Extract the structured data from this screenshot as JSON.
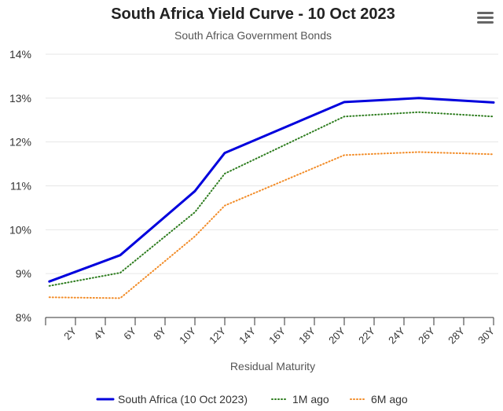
{
  "colors": {
    "grid": "#e6e6e6",
    "axis": "#333333",
    "menu": "#666666"
  },
  "menu_icon": "hamburger-menu-icon",
  "chart_data": {
    "type": "line",
    "title": "South Africa Yield Curve - 10 Oct 2023",
    "subtitle": "South Africa Government Bonds",
    "xlabel": "Residual Maturity",
    "ylabel": "",
    "xlim": [
      0,
      30
    ],
    "ylim": [
      8,
      14
    ],
    "yticks": [
      "8%",
      "9%",
      "10%",
      "11%",
      "12%",
      "13%",
      "14%"
    ],
    "ytick_values": [
      8,
      9,
      10,
      11,
      12,
      13,
      14
    ],
    "xticks": [
      "2Y",
      "4Y",
      "6Y",
      "8Y",
      "10Y",
      "12Y",
      "14Y",
      "16Y",
      "18Y",
      "20Y",
      "22Y",
      "24Y",
      "26Y",
      "28Y",
      "30Y"
    ],
    "xtick_values": [
      2,
      4,
      6,
      8,
      10,
      12,
      14,
      16,
      18,
      20,
      22,
      24,
      26,
      28,
      30
    ],
    "series": [
      {
        "name": "South Africa (10 Oct 2023)",
        "color": "#0000dd",
        "style": "solid",
        "x": [
          0.25,
          5,
          10,
          12,
          20,
          25,
          30
        ],
        "values": [
          8.82,
          9.42,
          10.88,
          11.75,
          12.91,
          13.0,
          12.9
        ]
      },
      {
        "name": "1M ago",
        "color": "#2e7d1f",
        "style": "dotted",
        "x": [
          0.25,
          5,
          10,
          12,
          20,
          25,
          30
        ],
        "values": [
          8.72,
          9.02,
          10.4,
          11.28,
          12.58,
          12.68,
          12.58
        ]
      },
      {
        "name": "6M ago",
        "color": "#f28c28",
        "style": "dotted",
        "x": [
          0.25,
          5,
          10,
          12,
          20,
          25,
          30
        ],
        "values": [
          8.46,
          8.44,
          9.85,
          10.55,
          11.7,
          11.77,
          11.72
        ]
      }
    ]
  }
}
